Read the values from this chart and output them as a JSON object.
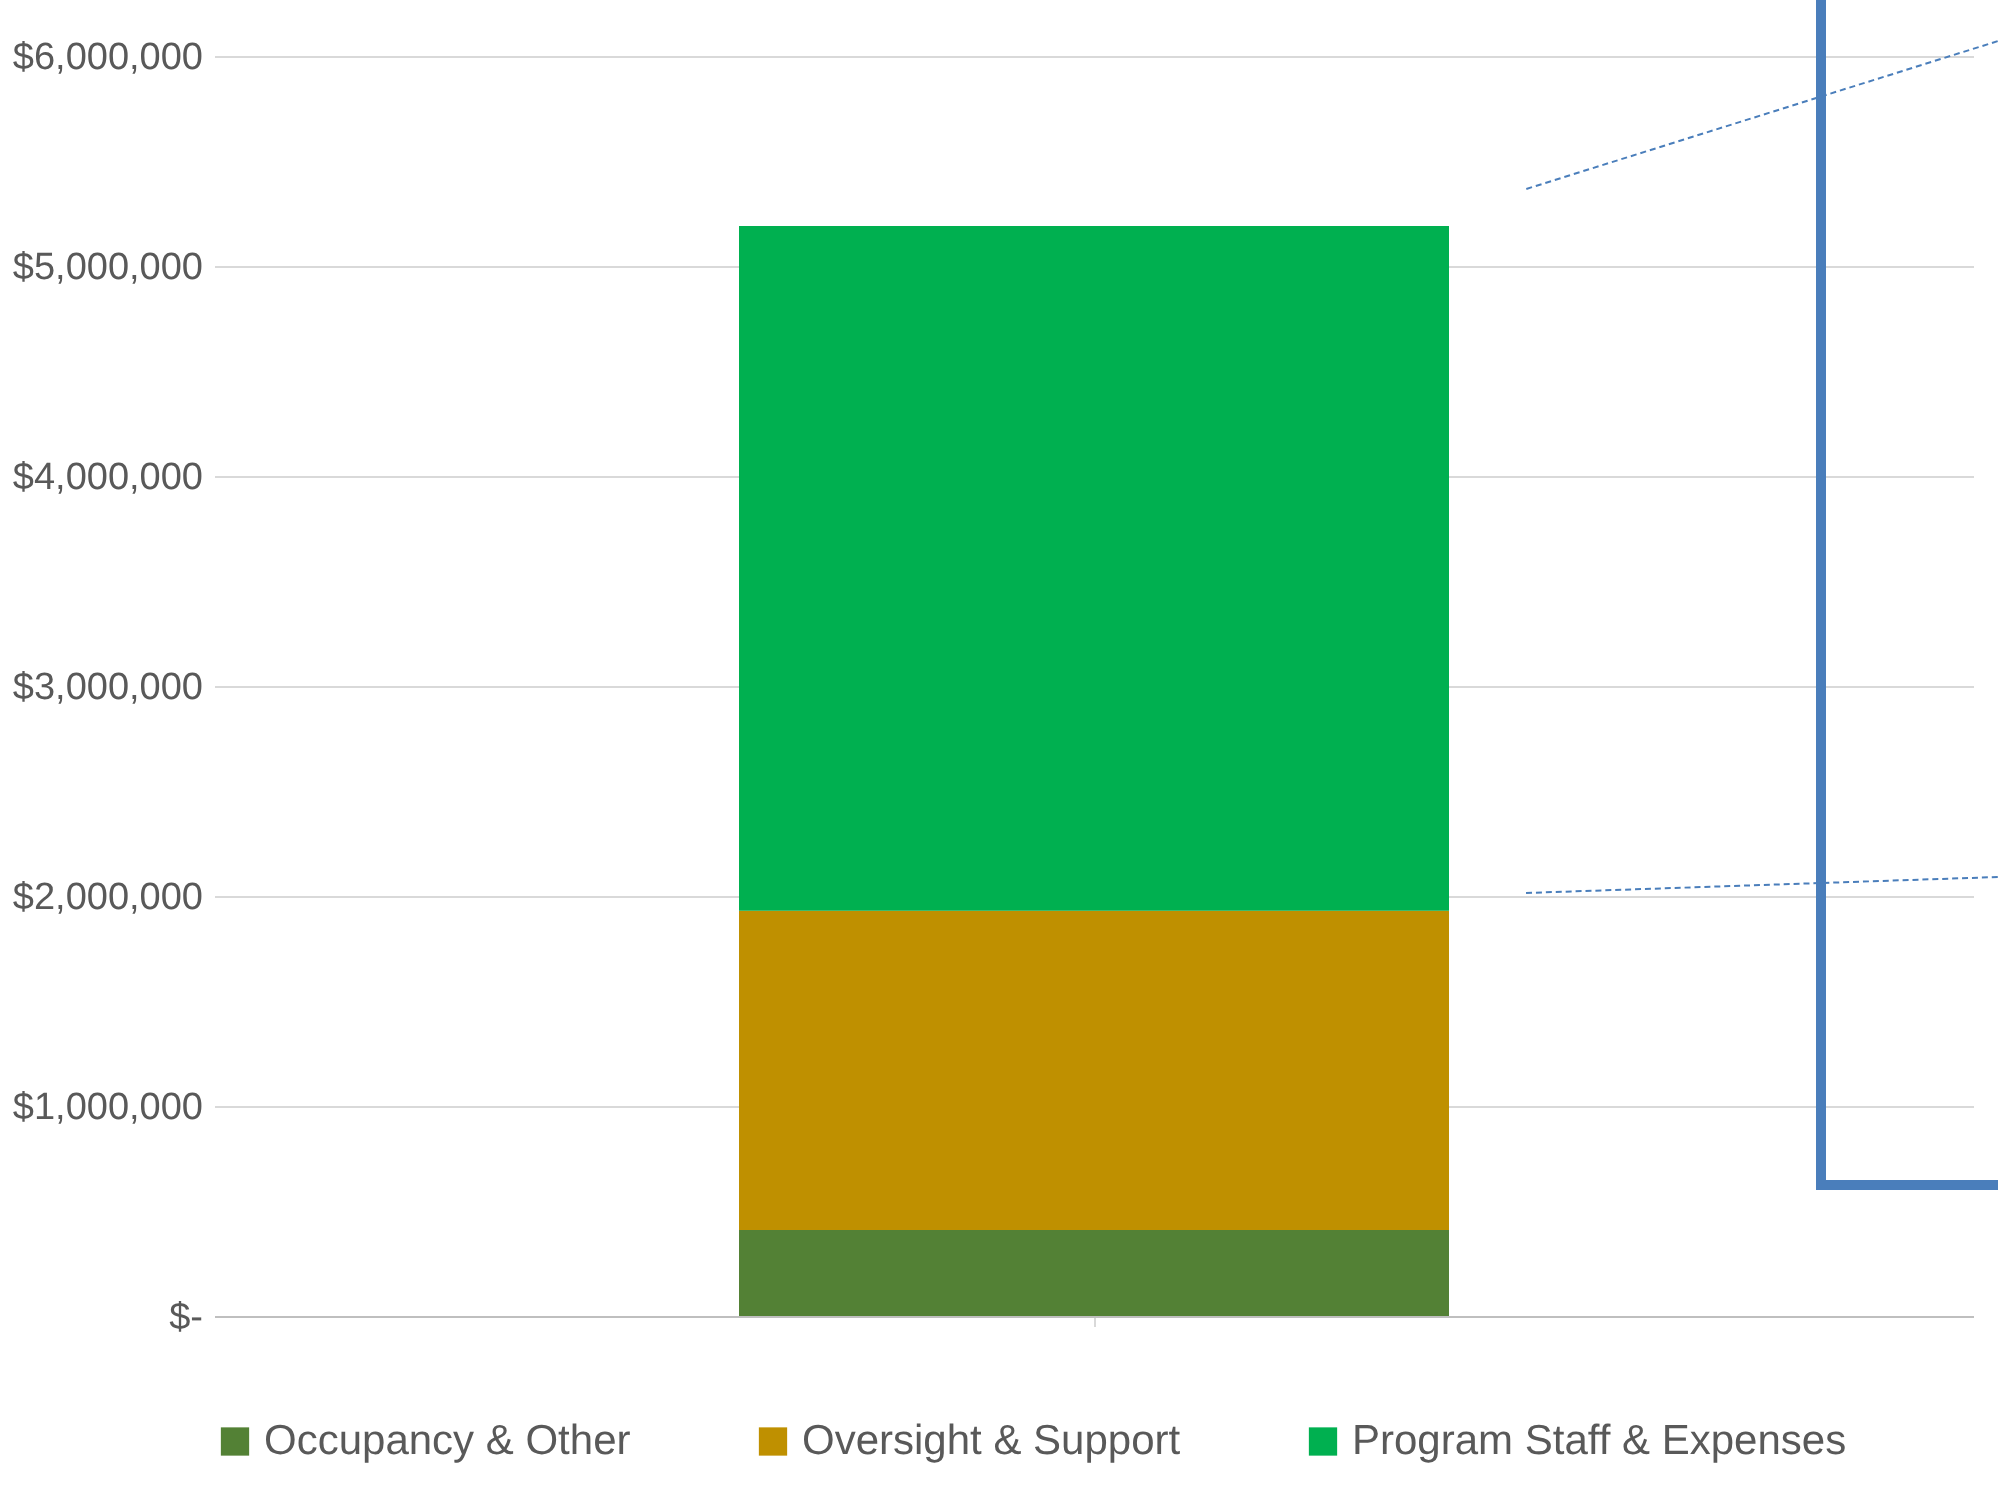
{
  "chart_data": {
    "type": "bar",
    "stacked": true,
    "categories": [
      null
    ],
    "series": [
      {
        "name": "Occupancy & Other",
        "color": "#538135",
        "values": [
          410000
        ]
      },
      {
        "name": "Oversight & Support",
        "color": "#bf9000",
        "values": [
          1520000
        ]
      },
      {
        "name": "Program Staff & Expenses",
        "color": "#00b050",
        "values": [
          3260000
        ]
      }
    ],
    "ylim": [
      0,
      6000000
    ],
    "yticks": [
      {
        "value": 0,
        "label": "$-"
      },
      {
        "value": 1000000,
        "label": "$1,000,000"
      },
      {
        "value": 2000000,
        "label": "$2,000,000"
      },
      {
        "value": 3000000,
        "label": "$3,000,000"
      },
      {
        "value": 4000000,
        "label": "$4,000,000"
      },
      {
        "value": 5000000,
        "label": "$5,000,000"
      },
      {
        "value": 6000000,
        "label": "$6,000,000"
      }
    ],
    "grid": "y",
    "legend": "bottom"
  }
}
